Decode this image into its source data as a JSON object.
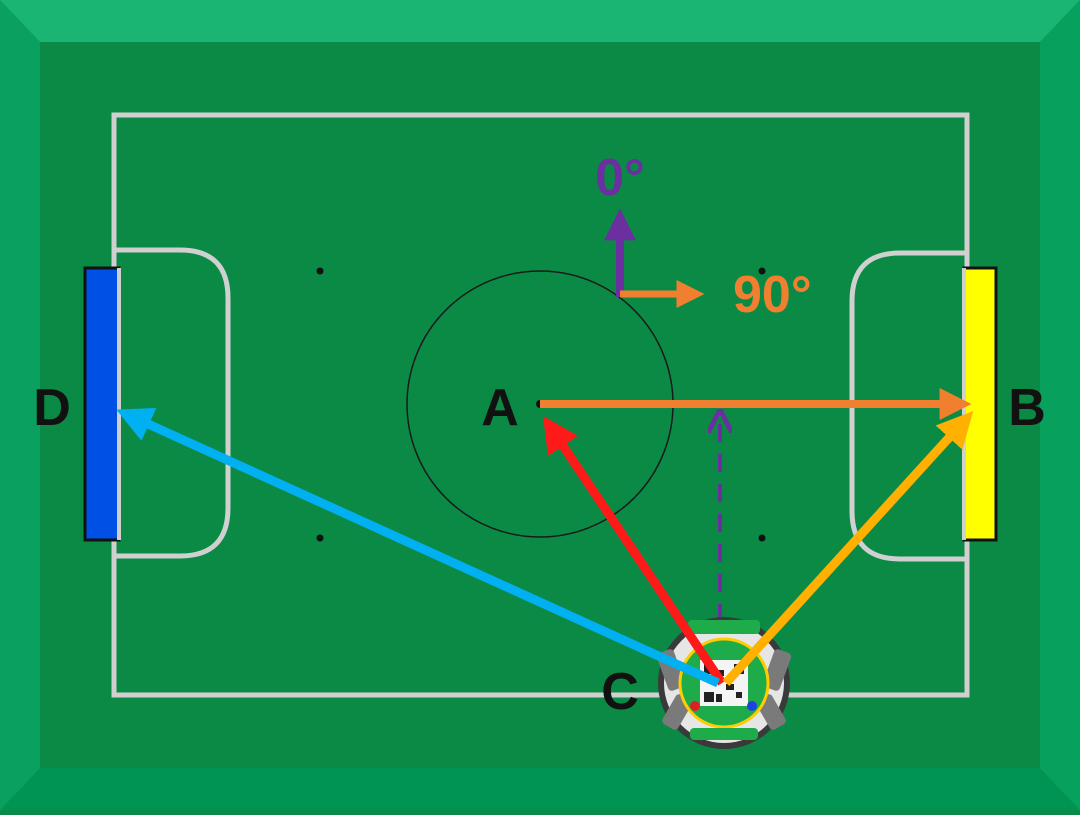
{
  "labels": {
    "point_a": "A",
    "point_b": "B",
    "point_c": "C",
    "point_d": "D",
    "angle_zero": "0°",
    "angle_ninety": "90°"
  },
  "colors": {
    "outer_border": "#00a060",
    "field": "#0b8a45",
    "field_lines": "#d0d0d0",
    "goal_left": "#0050e6",
    "goal_right": "#ffff00",
    "compass_up": "#6b2fa0",
    "compass_right": "#f08030",
    "arrow_c_to_a": "#ff1a1a",
    "arrow_c_to_b": "#ffb000",
    "arrow_c_to_d": "#00b0f0",
    "arrow_a_to_b": "#f08030",
    "arrow_dashed": "#6b2fa0",
    "label_text": "#111111"
  },
  "icons": {
    "robot": "robot-top-view-icon"
  }
}
